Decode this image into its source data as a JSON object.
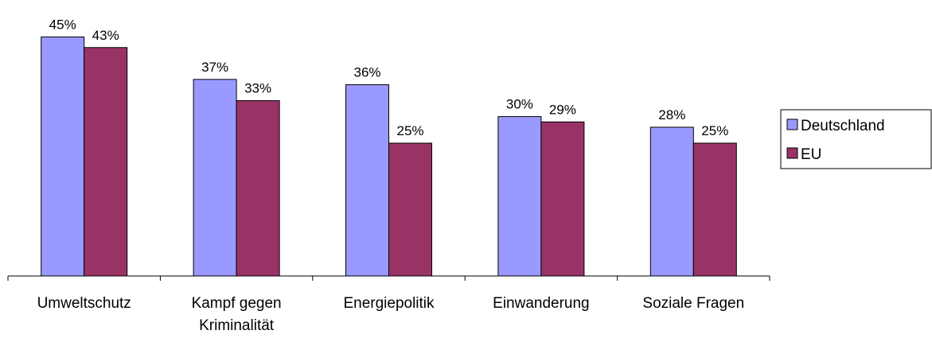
{
  "chart_data": {
    "type": "bar",
    "categories": [
      "Umweltschutz",
      "Kampf gegen Kriminalität",
      "Energiepolitik",
      "Einwanderung",
      "Soziale Fragen"
    ],
    "series": [
      {
        "name": "Deutschland",
        "color": "#9999ff",
        "values": [
          45,
          37,
          36,
          30,
          28
        ],
        "value_labels": [
          "45%",
          "37%",
          "36%",
          "30%",
          "28%"
        ]
      },
      {
        "name": "EU",
        "color": "#993366",
        "values": [
          43,
          33,
          25,
          29,
          25
        ],
        "value_labels": [
          "43%",
          "33%",
          "25%",
          "29%",
          "25%"
        ]
      }
    ],
    "ylim": [
      0,
      50
    ],
    "legend": "right"
  }
}
